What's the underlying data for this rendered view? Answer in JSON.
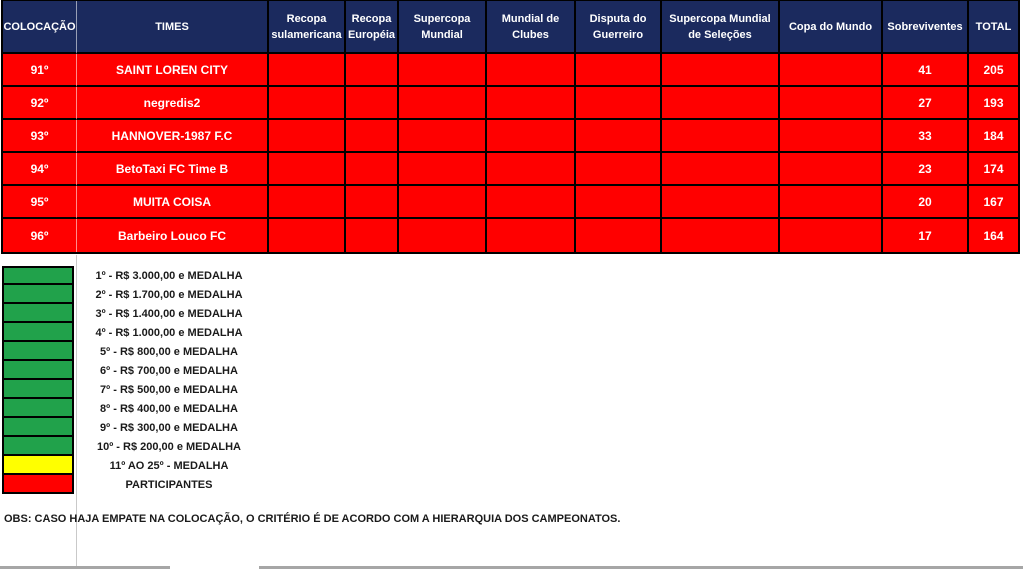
{
  "colors": {
    "header_bg": "#1B2A5E",
    "row_bg": "#FF0000",
    "green": "#21A24B",
    "yellow": "#FFFF00",
    "red": "#FF0000",
    "text_light": "#FFFFFF",
    "text_dark": "#1A1A1A",
    "gridline_gray": "#C9C9C9",
    "bottom_bar_gray": "#A6A6A6"
  },
  "table": {
    "headers": [
      {
        "key": "colocacao",
        "label": "COLOCAÇÃO"
      },
      {
        "key": "times",
        "label": "TIMES"
      },
      {
        "key": "recopa_sul",
        "label": "Recopa sulamericana"
      },
      {
        "key": "recopa_eur",
        "label": "Recopa Européia"
      },
      {
        "key": "supercopa_mundial",
        "label": "Supercopa Mundial"
      },
      {
        "key": "mundial_clubes",
        "label": "Mundial de Clubes"
      },
      {
        "key": "disputa_guerreiro",
        "label": "Disputa do Guerreiro"
      },
      {
        "key": "supercopa_selecoes",
        "label": "Supercopa Mundial de Seleções"
      },
      {
        "key": "copa_mundo",
        "label": "Copa do Mundo"
      },
      {
        "key": "sobreviventes",
        "label": "Sobreviventes"
      },
      {
        "key": "total",
        "label": "TOTAL"
      }
    ],
    "rows": [
      {
        "colocacao": "91º",
        "times": "SAINT LOREN CITY",
        "recopa_sul": "",
        "recopa_eur": "",
        "supercopa_mundial": "",
        "mundial_clubes": "",
        "disputa_guerreiro": "",
        "supercopa_selecoes": "",
        "copa_mundo": "",
        "sobreviventes": "41",
        "total": "205"
      },
      {
        "colocacao": "92º",
        "times": "negredis2",
        "recopa_sul": "",
        "recopa_eur": "",
        "supercopa_mundial": "",
        "mundial_clubes": "",
        "disputa_guerreiro": "",
        "supercopa_selecoes": "",
        "copa_mundo": "",
        "sobreviventes": "27",
        "total": "193"
      },
      {
        "colocacao": "93º",
        "times": "HANNOVER-1987 F.C",
        "recopa_sul": "",
        "recopa_eur": "",
        "supercopa_mundial": "",
        "mundial_clubes": "",
        "disputa_guerreiro": "",
        "supercopa_selecoes": "",
        "copa_mundo": "",
        "sobreviventes": "33",
        "total": "184"
      },
      {
        "colocacao": "94º",
        "times": "BetoTaxi FC Time B",
        "recopa_sul": "",
        "recopa_eur": "",
        "supercopa_mundial": "",
        "mundial_clubes": "",
        "disputa_guerreiro": "",
        "supercopa_selecoes": "",
        "copa_mundo": "",
        "sobreviventes": "23",
        "total": "174"
      },
      {
        "colocacao": "95º",
        "times": "MUITA COISA",
        "recopa_sul": "",
        "recopa_eur": "",
        "supercopa_mundial": "",
        "mundial_clubes": "",
        "disputa_guerreiro": "",
        "supercopa_selecoes": "",
        "copa_mundo": "",
        "sobreviventes": "20",
        "total": "167"
      },
      {
        "colocacao": "96º",
        "times": "Barbeiro Louco FC",
        "recopa_sul": "",
        "recopa_eur": "",
        "supercopa_mundial": "",
        "mundial_clubes": "",
        "disputa_guerreiro": "",
        "supercopa_selecoes": "",
        "copa_mundo": "",
        "sobreviventes": "17",
        "total": "164"
      }
    ]
  },
  "legend": {
    "items": [
      {
        "color": "green",
        "label": "1º - R$ 3.000,00 e MEDALHA"
      },
      {
        "color": "green",
        "label": "2º - R$ 1.700,00 e MEDALHA"
      },
      {
        "color": "green",
        "label": "3º - R$ 1.400,00 e MEDALHA"
      },
      {
        "color": "green",
        "label": "4º - R$ 1.000,00 e MEDALHA"
      },
      {
        "color": "green",
        "label": "5º - R$ 800,00 e MEDALHA"
      },
      {
        "color": "green",
        "label": "6º - R$ 700,00 e MEDALHA"
      },
      {
        "color": "green",
        "label": "7º - R$ 500,00 e MEDALHA"
      },
      {
        "color": "green",
        "label": "8º - R$ 400,00 e MEDALHA"
      },
      {
        "color": "green",
        "label": "9º - R$ 300,00 e MEDALHA"
      },
      {
        "color": "green",
        "label": "10º - R$ 200,00 e MEDALHA"
      },
      {
        "color": "yellow",
        "label": "11º AO 25º - MEDALHA"
      },
      {
        "color": "red",
        "label": "PARTICIPANTES"
      }
    ]
  },
  "note": "OBS: CASO HAJA EMPATE NA COLOCAÇÃO, O CRITÉRIO É DE ACORDO COM A HIERARQUIA DOS CAMPEONATOS."
}
